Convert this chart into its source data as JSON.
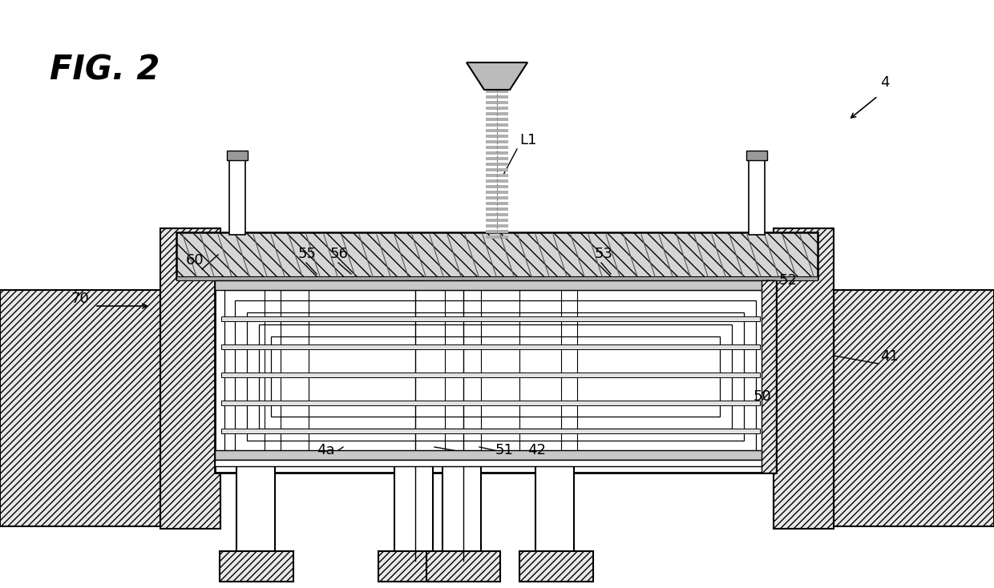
{
  "bg": "#ffffff",
  "fill_hatch": "#e8e8e8",
  "fill_white": "#ffffff",
  "fill_gray": "#cccccc",
  "fill_darkgray": "#aaaaaa",
  "line_color": "#000000",
  "fig_title": "FIG. 2",
  "labels": [
    "L1",
    "4",
    "60",
    "70",
    "55",
    "56",
    "53",
    "52",
    "41",
    "50",
    "4a",
    "51",
    "42"
  ]
}
